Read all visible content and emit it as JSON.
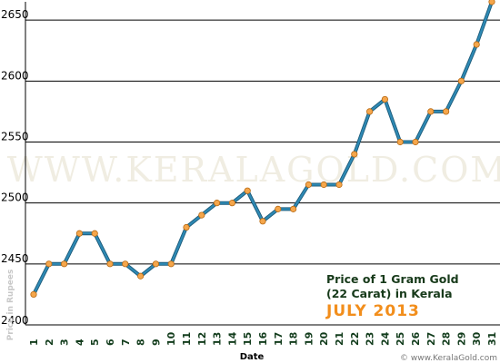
{
  "watermark": "WWW.KERALAGOLD.COM",
  "footer": "© www.KeralaGold.com",
  "chart_data": {
    "type": "line",
    "title_lines": [
      "Price of 1 Gram Gold",
      "(22 Carat) in Kerala",
      "JULY 2013"
    ],
    "xlabel": "Date",
    "ylabel": "Price in Rupees",
    "x": [
      "1",
      "2",
      "3",
      "4",
      "5",
      "6",
      "7",
      "8",
      "9",
      "10",
      "11",
      "12",
      "13",
      "14",
      "15",
      "16",
      "17",
      "18",
      "19",
      "20",
      "21",
      "22",
      "23",
      "24",
      "25",
      "26",
      "27",
      "28",
      "29",
      "30",
      "31"
    ],
    "yticks": [
      2400,
      2450,
      2500,
      2550,
      2600,
      2650
    ],
    "ylim": [
      2400,
      2665
    ],
    "grid": true,
    "series": [
      {
        "values": [
          2425,
          2450,
          2450,
          2475,
          2475,
          2450,
          2450,
          2440,
          2450,
          2450,
          2480,
          2490,
          2500,
          2500,
          2510,
          2485,
          2495,
          2495,
          2515,
          2515,
          2515,
          2540,
          2575,
          2585,
          2550,
          2550,
          2575,
          2575,
          2600,
          2630,
          2665
        ]
      }
    ],
    "colors": {
      "line": "#2e8ab5",
      "line_shadow": "#1d5b7a",
      "marker": "#f5a64b",
      "marker_edge": "#b86a14",
      "grid": "#000000"
    }
  }
}
